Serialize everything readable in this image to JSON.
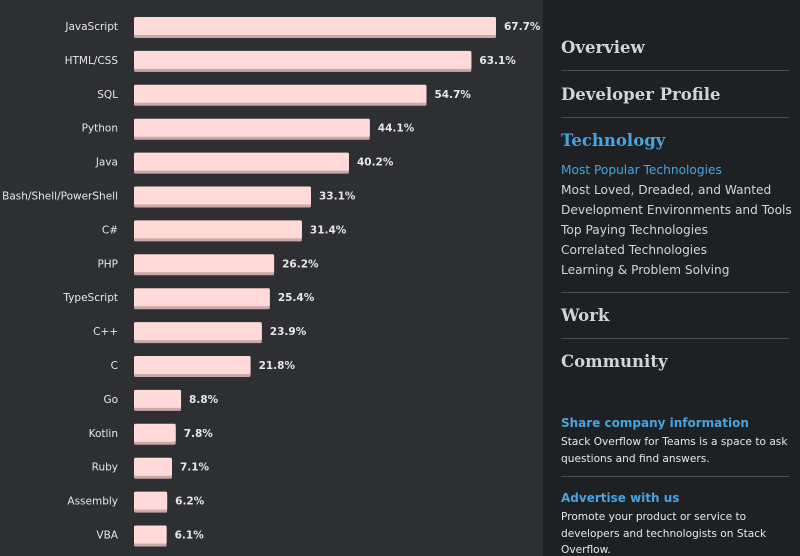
{
  "chart_data": {
    "type": "bar",
    "orientation": "horizontal",
    "categories": [
      "JavaScript",
      "HTML/CSS",
      "SQL",
      "Python",
      "Java",
      "Bash/Shell/PowerShell",
      "C#",
      "PHP",
      "TypeScript",
      "C++",
      "C",
      "Go",
      "Kotlin",
      "Ruby",
      "Assembly",
      "VBA"
    ],
    "values": [
      67.7,
      63.1,
      54.7,
      44.1,
      40.2,
      33.1,
      31.4,
      26.2,
      25.4,
      23.9,
      21.8,
      8.8,
      7.8,
      7.1,
      6.2,
      6.1
    ],
    "value_labels": [
      "67.7%",
      "63.1%",
      "54.7%",
      "44.1%",
      "40.2%",
      "33.1%",
      "31.4%",
      "26.2%",
      "25.4%",
      "23.9%",
      "21.8%",
      "8.8%",
      "7.8%",
      "7.1%",
      "6.2%",
      "6.1%"
    ],
    "unit": "%",
    "xlim": [
      0,
      67.7
    ],
    "grid": false,
    "bar_color": "#ffdad9",
    "bar_shadow_color": "#c9a9a8"
  },
  "sidebar": {
    "sections": [
      {
        "label": "Overview",
        "active": false
      },
      {
        "label": "Developer Profile",
        "active": false
      },
      {
        "label": "Technology",
        "active": true
      },
      {
        "label": "Work",
        "active": false
      },
      {
        "label": "Community",
        "active": false
      }
    ],
    "technology_items": [
      {
        "label": "Most Popular Technologies",
        "active": true
      },
      {
        "label": "Most Loved, Dreaded, and Wanted",
        "active": false
      },
      {
        "label": "Development Environments and Tools",
        "active": false
      },
      {
        "label": "Top Paying Technologies",
        "active": false
      },
      {
        "label": "Correlated Technologies",
        "active": false
      },
      {
        "label": "Learning & Problem Solving",
        "active": false
      }
    ],
    "promos": [
      {
        "title": "Share company information",
        "text": "Stack Overflow for Teams is a space to ask questions and find answers."
      },
      {
        "title": "Advertise with us",
        "text": "Promote your product or service to developers and technologists on Stack Overflow."
      }
    ]
  },
  "colors": {
    "chart_background": "#2d2f33",
    "sidebar_background": "#1e2124",
    "accent": "#4aa3df",
    "text": "#d2d4d6"
  }
}
